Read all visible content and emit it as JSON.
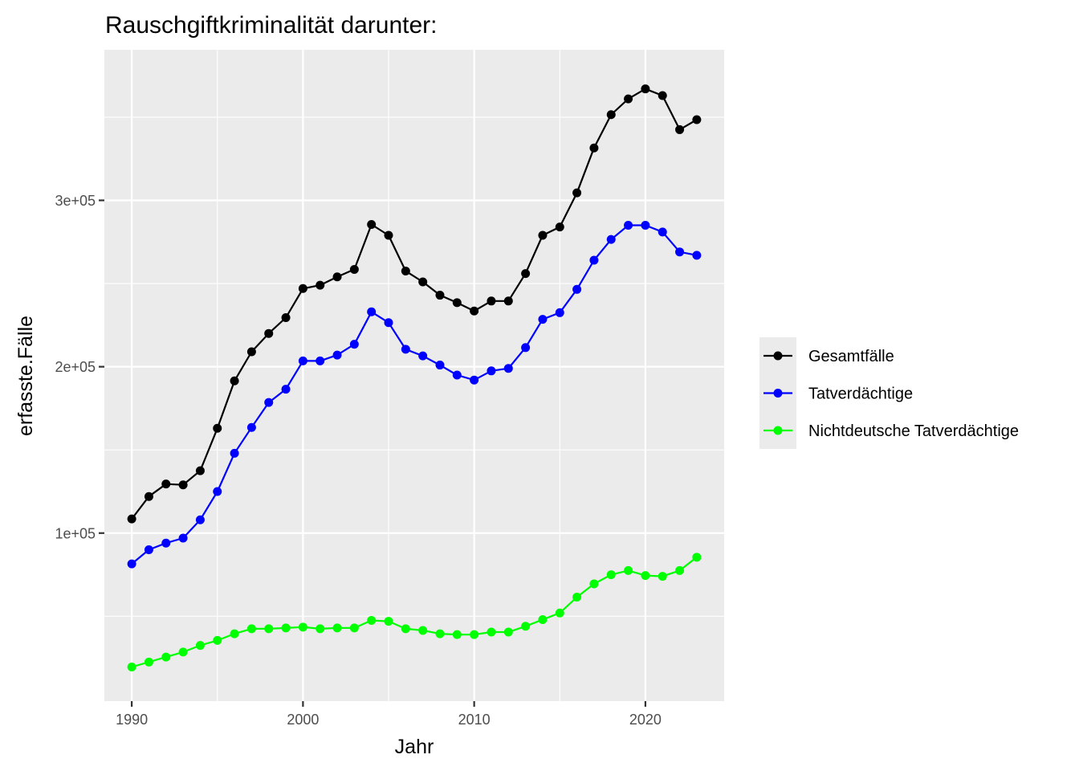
{
  "chart_data": {
    "type": "line",
    "title": "Rauschgiftkriminalität darunter:",
    "xlabel": "Jahr",
    "ylabel": "erfasste.Fälle",
    "x": [
      1990,
      1991,
      1992,
      1993,
      1994,
      1995,
      1996,
      1997,
      1998,
      1999,
      2000,
      2001,
      2002,
      2003,
      2004,
      2005,
      2006,
      2007,
      2008,
      2009,
      2010,
      2011,
      2012,
      2013,
      2014,
      2015,
      2016,
      2017,
      2018,
      2019,
      2020,
      2021,
      2022,
      2023
    ],
    "xlim": [
      1988.4,
      2024.6
    ],
    "ylim": [
      -1000,
      390500
    ],
    "x_ticks": [
      1990,
      2000,
      2010,
      2020
    ],
    "x_tick_labels": [
      "1990",
      "2000",
      "2010",
      "2020"
    ],
    "y_ticks": [
      100000,
      200000,
      300000
    ],
    "y_tick_labels": [
      "1e+05",
      "2e+05",
      "3e+05"
    ],
    "grid": true,
    "legend_position": "right",
    "series": [
      {
        "name": "Gesamtfälle",
        "color": "#000000",
        "values": [
          108500,
          122000,
          129500,
          129000,
          137500,
          163000,
          191500,
          209000,
          220000,
          229500,
          247000,
          249000,
          254000,
          258500,
          285500,
          279000,
          257500,
          251000,
          243000,
          238500,
          233500,
          239500,
          239500,
          256000,
          279000,
          284000,
          304500,
          331500,
          351500,
          361000,
          367000,
          363000,
          342500,
          348500
        ]
      },
      {
        "name": "Tatverdächtige",
        "color": "#0000ff",
        "values": [
          81500,
          90000,
          94000,
          97000,
          108000,
          125000,
          148000,
          163500,
          178500,
          186500,
          203500,
          203500,
          207000,
          213500,
          233000,
          226500,
          210500,
          206500,
          201000,
          195000,
          192000,
          197500,
          199000,
          211500,
          228500,
          232500,
          246500,
          264000,
          276500,
          285000,
          285000,
          281000,
          269000,
          267000
        ]
      },
      {
        "name": "Nichtdeutsche Tatverdächtige",
        "color": "#00ff00",
        "values": [
          19500,
          22500,
          25500,
          28500,
          32500,
          35500,
          39500,
          42500,
          42500,
          43000,
          43500,
          42500,
          43000,
          43000,
          47500,
          47000,
          42500,
          41500,
          39500,
          39000,
          39000,
          40500,
          40500,
          44000,
          48000,
          52000,
          61500,
          69500,
          75000,
          77500,
          74500,
          74000,
          77500,
          85500
        ]
      }
    ]
  }
}
